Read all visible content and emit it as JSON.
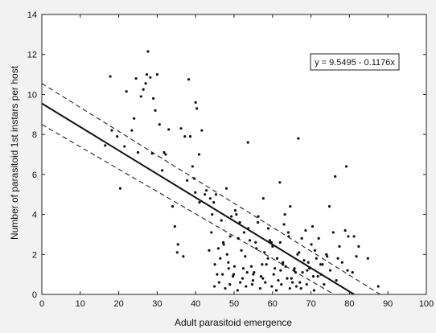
{
  "chart_data": {
    "type": "scatter",
    "xlabel": "Adult parasitoid emergence",
    "ylabel": "Number of parasitoid 1st instars per host",
    "xlim": [
      0,
      100
    ],
    "ylim": [
      0,
      14
    ],
    "x_ticks": [
      0,
      10,
      20,
      30,
      40,
      50,
      60,
      70,
      80,
      90,
      100
    ],
    "y_ticks": [
      0,
      2,
      4,
      6,
      8,
      10,
      12,
      14
    ],
    "grid": false,
    "annotation": "y = 9.5495 - 0.1176x",
    "fit": {
      "intercept": 9.5495,
      "slope": -0.1176
    },
    "confidence_band": {
      "upper": {
        "x": [
          0,
          88
        ],
        "y": [
          10.55,
          0
        ]
      },
      "lower": {
        "x": [
          0,
          76
        ],
        "y": [
          8.5,
          0
        ]
      }
    },
    "points": {
      "x": [
        16.5,
        17.8,
        18.2,
        19.6,
        20.4,
        21.5,
        22.0,
        23.4,
        24.5,
        25.0,
        25.8,
        26.4,
        27.0,
        27.3,
        27.6,
        28.2,
        28.7,
        29.5,
        30.0,
        30.6,
        31.3,
        32.2,
        33.0,
        34.6,
        35.4,
        36.2,
        37.2,
        37.8,
        38.2,
        39.2,
        40.0,
        40.3,
        40.9,
        41.6,
        42.4,
        43.5,
        44.3,
        45.0,
        45.9,
        46.4,
        47.3,
        48.0,
        48.6,
        49.3,
        49.9,
        50.6,
        51.1,
        51.9,
        52.6,
        53.4,
        54.1,
        54.9,
        55.6,
        56.3,
        57.3,
        57.9,
        58.9,
        59.7,
        60.3,
        61.2,
        62.0,
        62.7,
        63.4,
        64.2,
        64.9,
        65.7,
        66.5,
        67.1,
        67.8,
        68.6,
        69.3,
        70.1,
        70.6,
        71.4,
        72.0,
        72.6,
        73.4,
        74.2,
        75.0,
        75.8,
        76.6,
        77.4,
        78.1,
        78.9,
        79.7,
        80.8,
        81.8,
        44.1,
        45.6,
        47.2,
        48.5,
        49.7,
        51.5,
        52.9,
        54.5,
        55.8,
        57.5,
        58.8,
        60.0,
        61.5,
        62.7,
        64.1,
        65.6,
        66.9,
        68.2,
        69.6,
        71.0,
        72.5,
        74.0,
        43.8,
        46.7,
        49.0,
        50.3,
        53.7,
        56.2,
        59.3,
        63.0,
        67.6,
        70.4,
        44.9,
        46.1,
        47.7,
        48.9,
        50.9,
        52.2,
        53.1,
        54.7,
        56.8,
        58.1,
        59.8,
        61.0,
        62.3,
        64.5,
        65.2,
        66.2,
        67.4,
        68.9,
        70.8,
        47.0,
        50.1,
        51.6,
        55.2,
        57.0,
        60.6,
        63.8,
        69.0,
        48.2,
        52.4,
        55.0,
        58.4,
        62.1,
        66.0,
        71.8,
        73.0,
        39.6,
        41.0,
        42.8,
        36.8,
        35.2,
        45.3,
        53.6,
        57.6,
        61.9,
        76.3,
        79.2,
        84.8,
        87.5,
        82.4,
        38.6,
        24.0,
        29.0,
        31.8,
        34.0,
        39.9,
        44.7,
        66.7,
        74.8,
        77.0,
        81.2,
        79.5,
        64.6,
        63.2
      ],
      "y": [
        7.45,
        10.9,
        8.2,
        7.9,
        5.3,
        7.4,
        10.15,
        8.2,
        10.8,
        7.1,
        9.9,
        10.25,
        10.55,
        11.0,
        12.15,
        10.85,
        7.05,
        9.2,
        11.0,
        8.5,
        6.2,
        7.0,
        8.25,
        3.4,
        2.5,
        8.3,
        7.9,
        5.7,
        10.75,
        6.4,
        9.6,
        9.3,
        7.0,
        8.2,
        5.0,
        2.2,
        4.0,
        1.5,
        2.3,
        1.8,
        2.5,
        5.3,
        1.3,
        3.9,
        1.0,
        4.0,
        2.8,
        2.2,
        3.1,
        1.1,
        2.7,
        0.7,
        2.6,
        3.9,
        1.5,
        2.1,
        3.3,
        2.6,
        1.0,
        1.8,
        2.6,
        1.6,
        1.4,
        2.9,
        0.8,
        1.3,
        2.0,
        0.6,
        1.1,
        3.2,
        1.6,
        2.5,
        0.9,
        1.8,
        2.8,
        1.0,
        0.5,
        1.9,
        1.2,
        3.1,
        0.7,
        2.4,
        1.6,
        3.2,
        2.9,
        1.1,
        1.9,
        3.1,
        1.0,
        2.6,
        1.6,
        0.9,
        3.6,
        1.9,
        1.4,
        2.3,
        0.8,
        1.8,
        2.4,
        0.7,
        1.5,
        3.1,
        1.2,
        2.1,
        1.7,
        1.3,
        2.2,
        1.5,
        2.0,
        4.8,
        3.7,
        2.9,
        4.2,
        3.3,
        3.6,
        2.7,
        3.5,
        2.8,
        3.4,
        0.4,
        0.6,
        0.3,
        0.5,
        0.2,
        0.8,
        0.4,
        0.5,
        0.3,
        0.6,
        0.4,
        0.2,
        0.5,
        0.3,
        0.6,
        0.4,
        0.3,
        0.5,
        0.2,
        1.0,
        1.4,
        0.6,
        1.1,
        0.9,
        1.3,
        0.8,
        1.2,
        2.0,
        1.3,
        1.0,
        1.5,
        1.2,
        1.1,
        0.9,
        1.5,
        5.8,
        4.6,
        5.2,
        1.9,
        2.1,
        5.0,
        7.6,
        4.8,
        5.6,
        5.9,
        6.4,
        1.8,
        0.4,
        2.4,
        7.9,
        8.8,
        9.8,
        7.1,
        4.4,
        5.1,
        4.6,
        7.8,
        4.4,
        1.8,
        2.9,
        1.2,
        4.4,
        4.0
      ]
    }
  }
}
